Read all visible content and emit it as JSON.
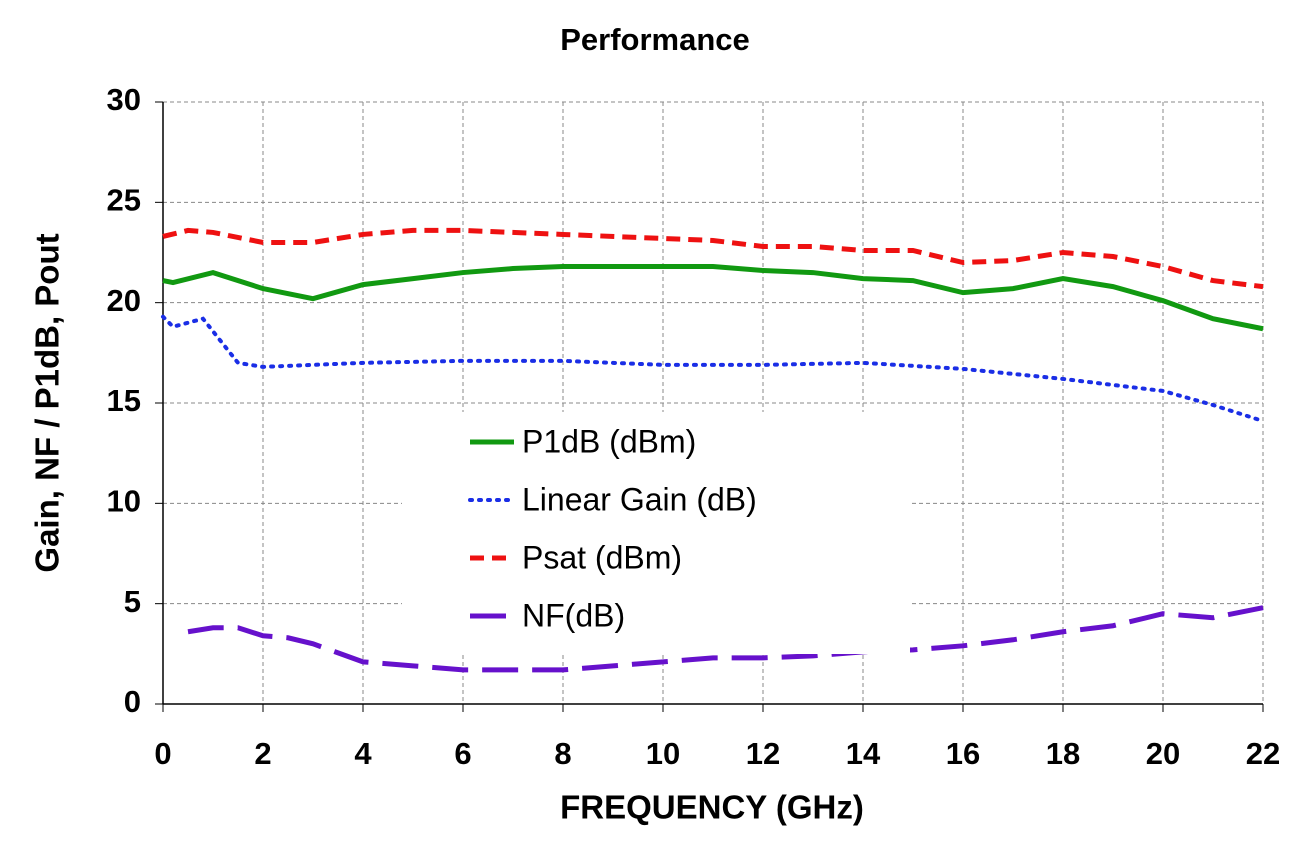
{
  "chart_data": {
    "type": "line",
    "title": "Performance",
    "x_label": "FREQUENCY (GHz)",
    "y_label": "Gain, NF / P1dB, Pout",
    "xlim": [
      0,
      22
    ],
    "xticks": [
      0,
      2,
      4,
      6,
      8,
      10,
      12,
      14,
      16,
      18,
      20,
      22
    ],
    "ylim": [
      0,
      30
    ],
    "yticks": [
      0,
      5,
      10,
      15,
      20,
      25,
      30
    ],
    "grid": true,
    "legend_position": "center",
    "series": [
      {
        "name": "P1dB (dBm)",
        "color": "#119911",
        "dash": "solid",
        "x": [
          0,
          0.2,
          1,
          2,
          3,
          4,
          5,
          6,
          7,
          8,
          9,
          10,
          11,
          12,
          13,
          14,
          15,
          16,
          17,
          18,
          19,
          20,
          21,
          22
        ],
        "values": [
          21.1,
          21.0,
          21.5,
          20.7,
          20.2,
          20.9,
          21.2,
          21.5,
          21.7,
          21.8,
          21.8,
          21.8,
          21.8,
          21.6,
          21.5,
          21.2,
          21.1,
          20.5,
          20.7,
          21.2,
          20.8,
          20.1,
          19.2,
          18.7
        ]
      },
      {
        "name": "Linear Gain (dB)",
        "color": "#1a2ee6",
        "dash": "dotted",
        "x": [
          0,
          0.2,
          0.8,
          1.5,
          2,
          3,
          4,
          6,
          8,
          10,
          12,
          14,
          16,
          18,
          20,
          21,
          22
        ],
        "values": [
          19.3,
          18.8,
          19.2,
          17.0,
          16.8,
          16.9,
          17.0,
          17.1,
          17.1,
          16.9,
          16.9,
          17.0,
          16.7,
          16.2,
          15.6,
          14.9,
          14.1
        ]
      },
      {
        "name": "Psat (dBm)",
        "color": "#ee1111",
        "dash": "dashed",
        "x": [
          0,
          0.5,
          1,
          2,
          3,
          4,
          5,
          6,
          8,
          10,
          11,
          12,
          13,
          14,
          15,
          16,
          17,
          18,
          19,
          20,
          21,
          22
        ],
        "values": [
          23.3,
          23.6,
          23.5,
          23.0,
          23.0,
          23.4,
          23.6,
          23.6,
          23.4,
          23.2,
          23.1,
          22.8,
          22.8,
          22.6,
          22.6,
          22.0,
          22.1,
          22.5,
          22.3,
          21.8,
          21.1,
          20.8
        ]
      },
      {
        "name": "NF(dB)",
        "color": "#6611cc",
        "dash": "longdash",
        "x": [
          0.5,
          1,
          1.5,
          2,
          2.5,
          3,
          4,
          5,
          6,
          7,
          8,
          9,
          10,
          11,
          12,
          13,
          14,
          15,
          16,
          17,
          18,
          19,
          20,
          21,
          22
        ],
        "values": [
          3.6,
          3.8,
          3.8,
          3.4,
          3.3,
          3.0,
          2.1,
          1.9,
          1.7,
          1.7,
          1.7,
          1.9,
          2.1,
          2.3,
          2.3,
          2.4,
          2.6,
          2.7,
          2.9,
          3.2,
          3.6,
          3.9,
          4.5,
          4.3,
          4.8
        ]
      }
    ]
  }
}
